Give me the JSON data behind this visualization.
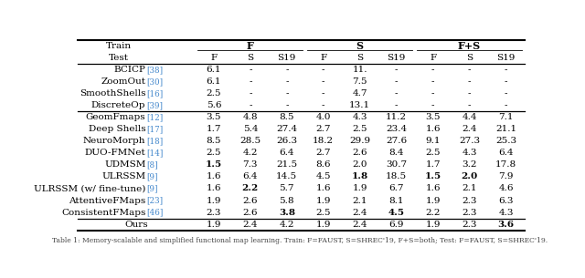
{
  "figsize": [
    6.4,
    3.05
  ],
  "dpi": 100,
  "ref_color": "#4488cc",
  "rows_group1": [
    {
      "method": "BCICP",
      "ref": "38",
      "vals": [
        "6.1",
        "-",
        "-",
        "-",
        "11.",
        "-",
        "-",
        "-",
        "-"
      ],
      "bold": []
    },
    {
      "method": "ZoomOut",
      "ref": "30",
      "vals": [
        "6.1",
        "-",
        "-",
        "-",
        "7.5",
        "-",
        "-",
        "-",
        "-"
      ],
      "bold": []
    },
    {
      "method": "SmoothShells",
      "ref": "16",
      "vals": [
        "2.5",
        "-",
        "-",
        "-",
        "4.7",
        "-",
        "-",
        "-",
        "-"
      ],
      "bold": []
    },
    {
      "method": "DiscreteOp",
      "ref": "39",
      "vals": [
        "5.6",
        "-",
        "-",
        "-",
        "13.1",
        "-",
        "-",
        "-",
        "-"
      ],
      "bold": []
    }
  ],
  "rows_group2": [
    {
      "method": "GeomFmaps",
      "ref": "12",
      "vals": [
        "3.5",
        "4.8",
        "8.5",
        "4.0",
        "4.3",
        "11.2",
        "3.5",
        "4.4",
        "7.1"
      ],
      "bold": []
    },
    {
      "method": "Deep Shells",
      "ref": "17",
      "vals": [
        "1.7",
        "5.4",
        "27.4",
        "2.7",
        "2.5",
        "23.4",
        "1.6",
        "2.4",
        "21.1"
      ],
      "bold": []
    },
    {
      "method": "NeuroMorph",
      "ref": "18",
      "vals": [
        "8.5",
        "28.5",
        "26.3",
        "18.2",
        "29.9",
        "27.6",
        "9.1",
        "27.3",
        "25.3"
      ],
      "bold": []
    },
    {
      "method": "DUO-FMNet",
      "ref": "14",
      "vals": [
        "2.5",
        "4.2",
        "6.4",
        "2.7",
        "2.6",
        "8.4",
        "2.5",
        "4.3",
        "6.4"
      ],
      "bold": []
    },
    {
      "method": "UDMSM",
      "ref": "8",
      "vals": [
        "1.5",
        "7.3",
        "21.5",
        "8.6",
        "2.0",
        "30.7",
        "1.7",
        "3.2",
        "17.8"
      ],
      "bold": [
        0
      ]
    },
    {
      "method": "ULRSSM",
      "ref": "9",
      "vals": [
        "1.6",
        "6.4",
        "14.5",
        "4.5",
        "1.8",
        "18.5",
        "1.5",
        "2.0",
        "7.9"
      ],
      "bold": [
        4,
        6,
        7
      ]
    },
    {
      "method": "ULRSSM (w/ fine-tune)",
      "ref": "9",
      "vals": [
        "1.6",
        "2.2",
        "5.7",
        "1.6",
        "1.9",
        "6.7",
        "1.6",
        "2.1",
        "4.6"
      ],
      "bold": [
        1
      ]
    },
    {
      "method": "AttentiveFMaps",
      "ref": "23",
      "vals": [
        "1.9",
        "2.6",
        "5.8",
        "1.9",
        "2.1",
        "8.1",
        "1.9",
        "2.3",
        "6.3"
      ],
      "bold": []
    },
    {
      "method": "ConsistentFMaps",
      "ref": "46",
      "vals": [
        "2.3",
        "2.6",
        "3.8",
        "2.5",
        "2.4",
        "4.5",
        "2.2",
        "2.3",
        "4.3"
      ],
      "bold": [
        2,
        5
      ]
    }
  ],
  "row_ours": {
    "method": "Ours",
    "ref": "",
    "vals": [
      "1.9",
      "2.4",
      "4.2",
      "1.9",
      "2.4",
      "6.9",
      "1.9",
      "2.3",
      "3.6"
    ],
    "bold": [
      8
    ]
  },
  "caption": "Table 1: Memory-scalable and simplified functional map learning. Train: F=FAUST, S=SHREC'19, F+S=both; Test: F=FAUST, S=SHREC'19."
}
